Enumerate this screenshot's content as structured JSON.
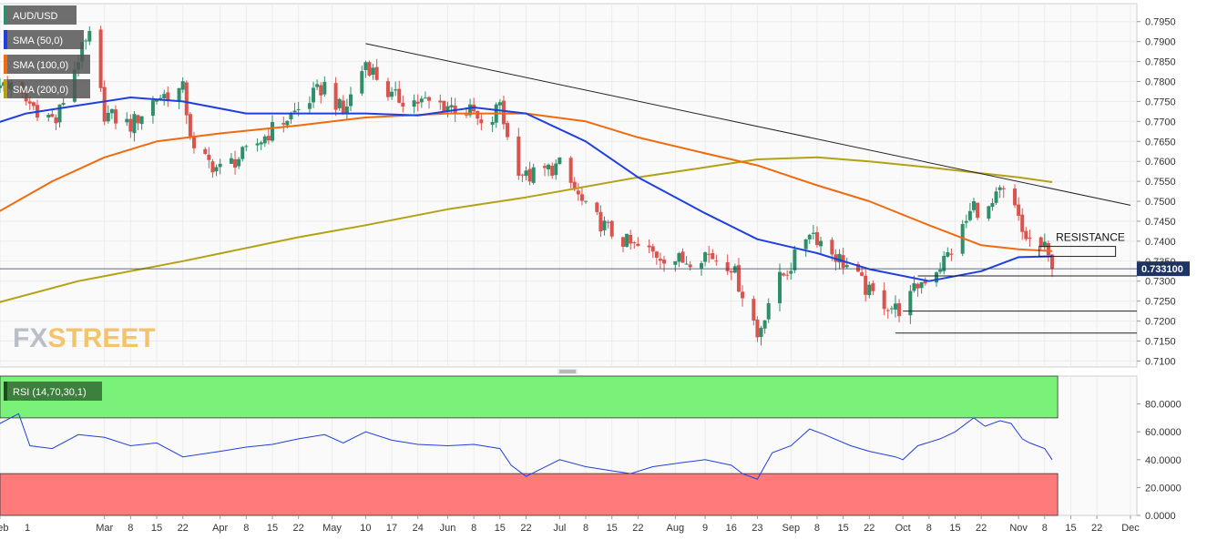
{
  "chart_data": [
    {
      "type": "candlestick",
      "symbol": "AUD/USD",
      "legend": [
        "AUD/USD",
        "SMA (50,0)",
        "SMA (100,0)",
        "SMA (200,0)"
      ],
      "ylim": [
        0.7085,
        0.7995
      ],
      "y_ticks": [
        "0.7100",
        "0.7150",
        "0.7200",
        "0.7250",
        "0.7300",
        "0.7350",
        "0.7400",
        "0.7450",
        "0.7500",
        "0.7550",
        "0.7600",
        "0.7650",
        "0.7700",
        "0.7750",
        "0.7800",
        "0.7850",
        "0.7900",
        "0.7950"
      ],
      "x_ticks": [
        "Feb",
        "1",
        "Mar",
        "8",
        "15",
        "22",
        "Apr",
        "8",
        "15",
        "22",
        "May",
        "10",
        "17",
        "24",
        "Jun",
        "8",
        "15",
        "22",
        "Jul",
        "8",
        "15",
        "22",
        "Aug",
        "9",
        "16",
        "23",
        "Sep",
        "8",
        "15",
        "22",
        "Oct",
        "8",
        "15",
        "22",
        "Nov",
        "8",
        "15",
        "22",
        "Dec"
      ],
      "last_price": "0.733100",
      "annotations": {
        "resistance": "RESISTANCE"
      },
      "colors": {
        "up": "#2f8f6a",
        "down": "#d9534f",
        "sma50": "#1f3fe0",
        "sma100": "#f06a10",
        "sma200": "#b2a214",
        "trend": "#222222"
      },
      "trendline": {
        "from": [
          "May 10",
          0.7895
        ],
        "to": [
          "Dec 1",
          0.749
        ]
      },
      "support_levels": [
        0.7313,
        0.7225,
        0.717
      ],
      "resistance_zone": [
        0.7362,
        0.7387
      ],
      "close_path": [
        [
          "Jan 29",
          0.775
        ],
        [
          "Feb 2",
          0.78
        ],
        [
          "Feb 8",
          0.775
        ],
        [
          "Feb 16",
          0.77
        ],
        [
          "Feb 22",
          0.786
        ],
        [
          "Feb 25",
          0.791
        ],
        [
          "Mar 1",
          0.772
        ],
        [
          "Mar 8",
          0.769
        ],
        [
          "Mar 15",
          0.776
        ],
        [
          "Mar 22",
          0.778
        ],
        [
          "Mar 25",
          0.762
        ],
        [
          "Apr 1",
          0.758
        ],
        [
          "Apr 8",
          0.762
        ],
        [
          "Apr 15",
          0.768
        ],
        [
          "Apr 22",
          0.773
        ],
        [
          "Apr 29",
          0.779
        ],
        [
          "May 4",
          0.772
        ],
        [
          "May 10",
          0.785
        ],
        [
          "May 17",
          0.776
        ],
        [
          "May 24",
          0.775
        ],
        [
          "Jun 1",
          0.774
        ],
        [
          "Jun 8",
          0.772
        ],
        [
          "Jun 11",
          0.766
        ],
        [
          "Jun 15",
          0.775
        ],
        [
          "Jun 18",
          0.761
        ],
        [
          "Jun 22",
          0.756
        ],
        [
          "Jul 1",
          0.759
        ],
        [
          "Jul 8",
          0.748
        ],
        [
          "Jul 15",
          0.742
        ],
        [
          "Jul 20",
          0.739
        ],
        [
          "Jul 26",
          0.737
        ],
        [
          "Aug 3",
          0.735
        ],
        [
          "Aug 9",
          0.737
        ],
        [
          "Aug 16",
          0.734
        ],
        [
          "Aug 19",
          0.727
        ],
        [
          "Aug 22",
          0.72
        ],
        [
          "Aug 23",
          0.716
        ],
        [
          "Aug 27",
          0.728
        ],
        [
          "Sep 1",
          0.734
        ],
        [
          "Sep 6",
          0.743
        ],
        [
          "Sep 10",
          0.739
        ],
        [
          "Sep 17",
          0.733
        ],
        [
          "Sep 22",
          0.727
        ],
        [
          "Sep 29",
          0.723
        ],
        [
          "Oct 1",
          0.723
        ],
        [
          "Oct 5",
          0.729
        ],
        [
          "Oct 11",
          0.734
        ],
        [
          "Oct 15",
          0.739
        ],
        [
          "Oct 20",
          0.749
        ],
        [
          "Oct 23",
          0.746
        ],
        [
          "Oct 27",
          0.752
        ],
        [
          "Oct 30",
          0.751
        ],
        [
          "Nov 2",
          0.742
        ],
        [
          "Nov 4",
          0.74
        ],
        [
          "Nov 8",
          0.738
        ],
        [
          "Nov 10",
          0.7331
        ]
      ],
      "sma50": [
        [
          "Jan 29",
          0.769
        ],
        [
          "Feb 8",
          0.772
        ],
        [
          "Feb 22",
          0.774
        ],
        [
          "Mar 8",
          0.776
        ],
        [
          "Mar 22",
          0.775
        ],
        [
          "Apr 8",
          0.772
        ],
        [
          "Apr 22",
          0.772
        ],
        [
          "May 10",
          0.772
        ],
        [
          "May 24",
          0.7715
        ],
        [
          "Jun 8",
          0.7735
        ],
        [
          "Jun 22",
          0.772
        ],
        [
          "Jul 8",
          0.765
        ],
        [
          "Jul 22",
          0.756
        ],
        [
          "Aug 9",
          0.747
        ],
        [
          "Aug 23",
          0.7405
        ],
        [
          "Sep 8",
          0.737
        ],
        [
          "Sep 22",
          0.733
        ],
        [
          "Oct 8",
          0.73
        ],
        [
          "Oct 22",
          0.7325
        ],
        [
          "Nov 1",
          0.736
        ],
        [
          "Nov 10",
          0.7362
        ]
      ],
      "sma100": [
        [
          "Jan 29",
          0.746
        ],
        [
          "Feb 15",
          0.755
        ],
        [
          "Mar 1",
          0.761
        ],
        [
          "Mar 15",
          0.765
        ],
        [
          "Apr 1",
          0.767
        ],
        [
          "Apr 22",
          0.769
        ],
        [
          "May 10",
          0.771
        ],
        [
          "Jun 1",
          0.772
        ],
        [
          "Jun 22",
          0.772
        ],
        [
          "Jul 8",
          0.77
        ],
        [
          "Jul 22",
          0.766
        ],
        [
          "Aug 9",
          0.762
        ],
        [
          "Aug 23",
          0.759
        ],
        [
          "Sep 8",
          0.754
        ],
        [
          "Sep 22",
          0.75
        ],
        [
          "Oct 8",
          0.744
        ],
        [
          "Oct 22",
          0.739
        ],
        [
          "Nov 1",
          0.738
        ],
        [
          "Nov 10",
          0.7375
        ]
      ],
      "sma200": [
        [
          "Jan 29",
          0.724
        ],
        [
          "Feb 22",
          0.73
        ],
        [
          "Mar 22",
          0.735
        ],
        [
          "Apr 22",
          0.741
        ],
        [
          "May 10",
          0.744
        ],
        [
          "Jun 1",
          0.748
        ],
        [
          "Jun 22",
          0.751
        ],
        [
          "Jul 22",
          0.756
        ],
        [
          "Aug 9",
          0.7585
        ],
        [
          "Aug 23",
          0.7605
        ],
        [
          "Sep 8",
          0.761
        ],
        [
          "Sep 22",
          0.76
        ],
        [
          "Oct 8",
          0.7585
        ],
        [
          "Oct 22",
          0.757
        ],
        [
          "Nov 1",
          0.756
        ],
        [
          "Nov 10",
          0.7548
        ]
      ]
    },
    {
      "type": "line",
      "legend": [
        "RSI (14,70,30,1)"
      ],
      "ylim": [
        0,
        100
      ],
      "y_ticks": [
        "0.0000",
        "20.0000",
        "40.0000",
        "60.0000",
        "80.0000"
      ],
      "zones": {
        "overbought": 70,
        "oversold": 30,
        "overbought_color": "#7af27a",
        "oversold_color": "#ff7b7b"
      },
      "line_color": "#1f3fe0",
      "series": [
        [
          "Jan 29",
          55
        ],
        [
          "Feb 1",
          66
        ],
        [
          "Feb 6",
          73
        ],
        [
          "Feb 9",
          50
        ],
        [
          "Feb 15",
          48
        ],
        [
          "Feb 22",
          58
        ],
        [
          "Mar 1",
          56
        ],
        [
          "Mar 8",
          50
        ],
        [
          "Mar 15",
          52
        ],
        [
          "Mar 22",
          42
        ],
        [
          "Apr 1",
          46
        ],
        [
          "Apr 8",
          49
        ],
        [
          "Apr 15",
          51
        ],
        [
          "Apr 22",
          55
        ],
        [
          "Apr 29",
          58
        ],
        [
          "May 4",
          52
        ],
        [
          "May 10",
          60
        ],
        [
          "May 17",
          54
        ],
        [
          "May 24",
          51
        ],
        [
          "Jun 1",
          50
        ],
        [
          "Jun 8",
          51
        ],
        [
          "Jun 15",
          48
        ],
        [
          "Jun 18",
          36
        ],
        [
          "Jun 22",
          28
        ],
        [
          "Jul 1",
          40
        ],
        [
          "Jul 8",
          35
        ],
        [
          "Jul 15",
          32
        ],
        [
          "Jul 20",
          30
        ],
        [
          "Jul 26",
          35
        ],
        [
          "Aug 3",
          38
        ],
        [
          "Aug 9",
          40
        ],
        [
          "Aug 16",
          36
        ],
        [
          "Aug 19",
          30
        ],
        [
          "Aug 23",
          26
        ],
        [
          "Aug 27",
          45
        ],
        [
          "Sep 1",
          50
        ],
        [
          "Sep 6",
          62
        ],
        [
          "Sep 10",
          58
        ],
        [
          "Sep 17",
          50
        ],
        [
          "Sep 22",
          46
        ],
        [
          "Sep 29",
          42
        ],
        [
          "Oct 1",
          40
        ],
        [
          "Oct 5",
          50
        ],
        [
          "Oct 11",
          55
        ],
        [
          "Oct 15",
          60
        ],
        [
          "Oct 20",
          70
        ],
        [
          "Oct 23",
          64
        ],
        [
          "Oct 27",
          68
        ],
        [
          "Oct 30",
          66
        ],
        [
          "Nov 2",
          55
        ],
        [
          "Nov 4",
          52
        ],
        [
          "Nov 8",
          48
        ],
        [
          "Nov 10",
          40
        ]
      ]
    }
  ],
  "watermark": {
    "part1": "FX",
    "part2": "STREET"
  }
}
